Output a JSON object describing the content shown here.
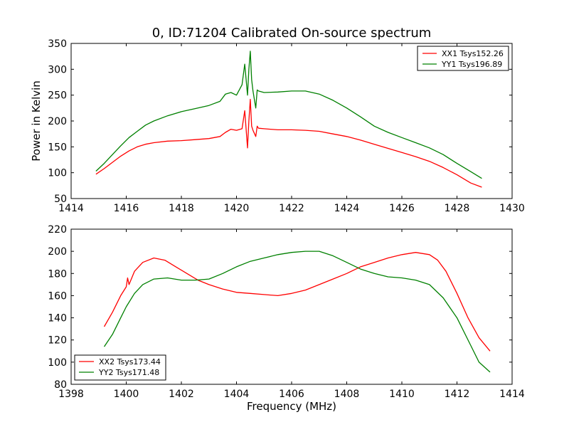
{
  "title": "0, ID:71204 Calibrated On-source spectrum",
  "chart_data": [
    {
      "type": "line",
      "ylabel": "Power in Kelvin",
      "xlabel": "",
      "xlim": [
        1414,
        1430
      ],
      "ylim": [
        50,
        350
      ],
      "xticks": [
        1414,
        1416,
        1418,
        1420,
        1422,
        1424,
        1426,
        1428,
        1430
      ],
      "yticks": [
        50,
        100,
        150,
        200,
        250,
        300,
        350
      ],
      "legend_position": "top-right",
      "series": [
        {
          "name": "XX1 Tsys152.26",
          "color": "#ff0000",
          "x": [
            1414.9,
            1415.2,
            1415.5,
            1415.8,
            1416.1,
            1416.4,
            1416.7,
            1417.0,
            1417.5,
            1418.0,
            1418.5,
            1419.0,
            1419.4,
            1419.6,
            1419.8,
            1420.0,
            1420.2,
            1420.3,
            1420.4,
            1420.45,
            1420.5,
            1420.55,
            1420.6,
            1420.7,
            1420.75,
            1420.8,
            1421.0,
            1421.5,
            1422.0,
            1422.5,
            1423.0,
            1423.5,
            1424.0,
            1424.5,
            1425.0,
            1425.5,
            1426.0,
            1426.5,
            1427.0,
            1427.5,
            1428.0,
            1428.5,
            1428.9
          ],
          "y": [
            97,
            108,
            120,
            132,
            142,
            150,
            155,
            158,
            161,
            162,
            164,
            166,
            170,
            178,
            184,
            182,
            185,
            220,
            148,
            200,
            242,
            190,
            182,
            170,
            190,
            186,
            185,
            183,
            183,
            182,
            180,
            175,
            170,
            163,
            155,
            147,
            139,
            131,
            122,
            110,
            96,
            80,
            72
          ]
        },
        {
          "name": "YY1 Tsys196.89",
          "color": "#008000",
          "x": [
            1414.9,
            1415.2,
            1415.5,
            1415.8,
            1416.1,
            1416.4,
            1416.7,
            1417.0,
            1417.5,
            1418.0,
            1418.5,
            1419.0,
            1419.4,
            1419.6,
            1419.8,
            1420.0,
            1420.2,
            1420.3,
            1420.4,
            1420.45,
            1420.5,
            1420.55,
            1420.6,
            1420.7,
            1420.75,
            1420.8,
            1421.0,
            1421.5,
            1422.0,
            1422.5,
            1423.0,
            1423.5,
            1424.0,
            1424.5,
            1425.0,
            1425.5,
            1426.0,
            1426.5,
            1427.0,
            1427.5,
            1428.0,
            1428.5,
            1428.9
          ],
          "y": [
            103,
            118,
            135,
            152,
            168,
            180,
            192,
            200,
            210,
            218,
            224,
            230,
            238,
            252,
            255,
            250,
            270,
            310,
            250,
            300,
            335,
            280,
            258,
            225,
            260,
            258,
            255,
            256,
            258,
            258,
            252,
            240,
            225,
            208,
            190,
            178,
            168,
            158,
            148,
            135,
            118,
            102,
            89
          ]
        }
      ]
    },
    {
      "type": "line",
      "ylabel": "",
      "xlabel": "Frequency (MHz)",
      "xlim": [
        1398,
        1414
      ],
      "ylim": [
        80,
        220
      ],
      "xticks": [
        1398,
        1400,
        1402,
        1404,
        1406,
        1408,
        1410,
        1412,
        1414
      ],
      "yticks": [
        80,
        100,
        120,
        140,
        160,
        180,
        200,
        220
      ],
      "legend_position": "bottom-left",
      "series": [
        {
          "name": "XX2 Tsys173.44",
          "color": "#ff0000",
          "x": [
            1399.2,
            1399.5,
            1399.8,
            1400.0,
            1400.05,
            1400.1,
            1400.3,
            1400.6,
            1401.0,
            1401.4,
            1401.8,
            1402.2,
            1402.6,
            1403.0,
            1403.5,
            1404.0,
            1404.5,
            1405.0,
            1405.5,
            1406.0,
            1406.5,
            1407.0,
            1407.5,
            1408.0,
            1408.5,
            1409.0,
            1409.5,
            1410.0,
            1410.5,
            1411.0,
            1411.3,
            1411.6,
            1412.0,
            1412.4,
            1412.8,
            1413.2
          ],
          "y": [
            132,
            145,
            160,
            168,
            176,
            170,
            182,
            190,
            194,
            192,
            186,
            180,
            174,
            170,
            166,
            163,
            162,
            161,
            160,
            162,
            165,
            170,
            175,
            180,
            186,
            190,
            194,
            197,
            199,
            197,
            192,
            182,
            162,
            140,
            122,
            110
          ]
        },
        {
          "name": "YY2 Tsys171.48",
          "color": "#008000",
          "x": [
            1399.2,
            1399.5,
            1399.8,
            1400.0,
            1400.3,
            1400.6,
            1401.0,
            1401.5,
            1402.0,
            1402.5,
            1403.0,
            1403.5,
            1404.0,
            1404.5,
            1405.0,
            1405.5,
            1406.0,
            1406.5,
            1407.0,
            1407.5,
            1408.0,
            1408.5,
            1409.0,
            1409.5,
            1410.0,
            1410.5,
            1411.0,
            1411.5,
            1412.0,
            1412.5,
            1412.8,
            1413.2
          ],
          "y": [
            114,
            125,
            140,
            150,
            162,
            170,
            175,
            176,
            174,
            174,
            175,
            180,
            186,
            191,
            194,
            197,
            199,
            200,
            200,
            196,
            190,
            184,
            180,
            177,
            176,
            174,
            170,
            158,
            140,
            115,
            100,
            91
          ]
        }
      ]
    }
  ]
}
